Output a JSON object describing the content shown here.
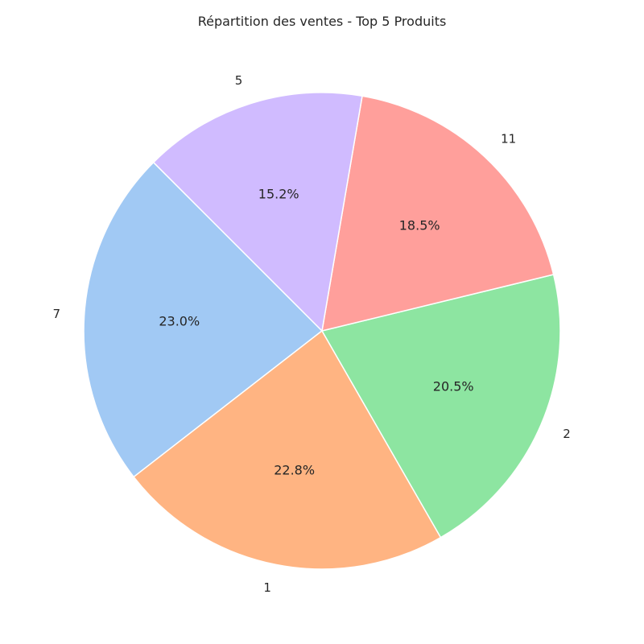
{
  "chart_data": {
    "type": "pie",
    "title": "Répartition des ventes - Top 5 Produits",
    "start_angle": 135,
    "direction": "counterclockwise",
    "slices": [
      {
        "label": "7",
        "percent": 23.0,
        "pct_label": "23.0%",
        "color": "#a1c9f4"
      },
      {
        "label": "1",
        "percent": 22.8,
        "pct_label": "22.8%",
        "color": "#ffb482"
      },
      {
        "label": "2",
        "percent": 20.5,
        "pct_label": "20.5%",
        "color": "#8de5a1"
      },
      {
        "label": "11",
        "percent": 18.5,
        "pct_label": "18.5%",
        "color": "#ff9f9b"
      },
      {
        "label": "5",
        "percent": 15.2,
        "pct_label": "15.2%",
        "color": "#d0bbff"
      }
    ]
  }
}
